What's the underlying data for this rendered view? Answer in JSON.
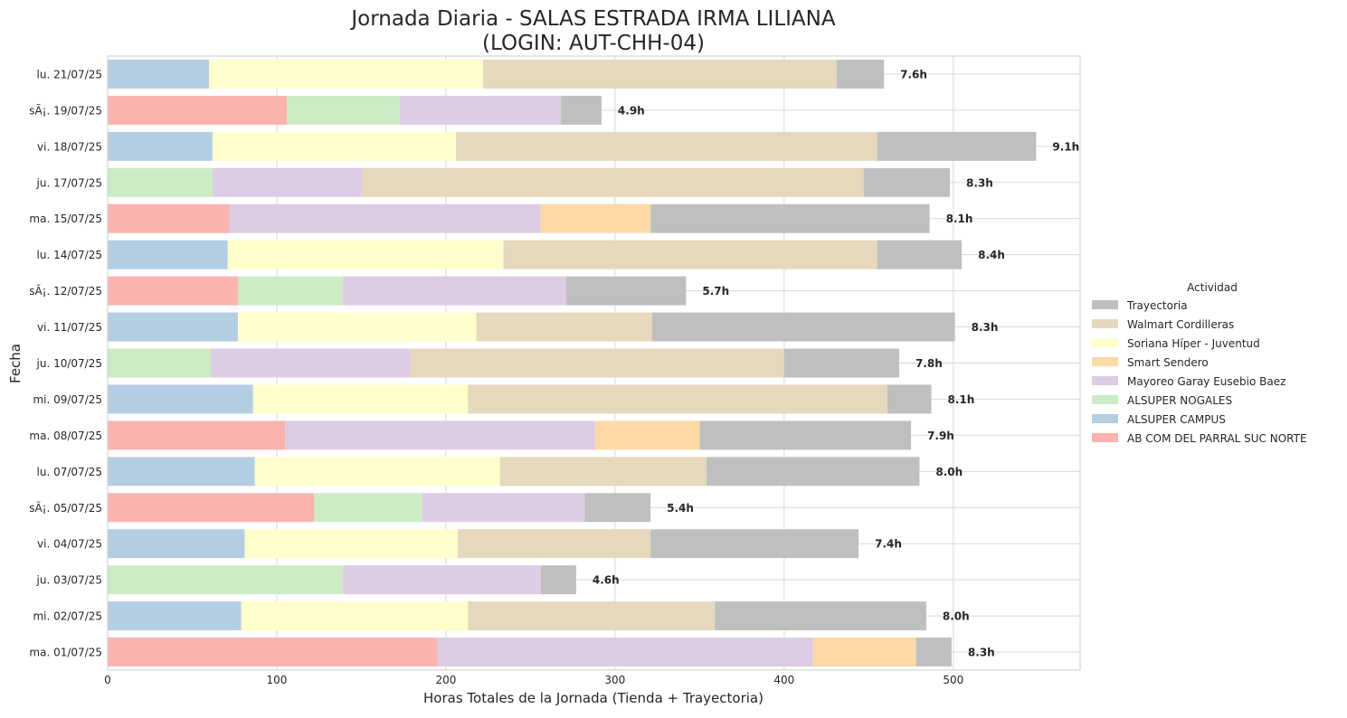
{
  "chart_data": {
    "type": "bar",
    "orientation": "horizontal",
    "stacked": true,
    "title_line1": "Jornada Diaria - SALAS ESTRADA IRMA LILIANA",
    "title_line2": "(LOGIN: AUT-CHH-04)",
    "xlabel": "Horas Totales de la Jornada (Tienda + Trayectoria)",
    "ylabel": "Fecha",
    "xlim": [
      0,
      575
    ],
    "xticks": [
      0,
      100,
      200,
      300,
      400,
      500
    ],
    "grid": true,
    "legend": {
      "title": "Actividad",
      "placement": "right",
      "entries": [
        "Trayectoria",
        "Walmart Cordilleras",
        "Soriana Híper - Juventud",
        "Smart Sendero",
        "Mayoreo Garay Eusebio Baez",
        "ALSUPER NOGALES",
        "ALSUPER CAMPUS",
        "AB COM DEL PARRAL SUC NORTE"
      ]
    },
    "colors": {
      "AB COM DEL PARRAL SUC NORTE": "#fab3ae",
      "ALSUPER CAMPUS": "#b3cde3",
      "ALSUPER NOGALES": "#ccebc5",
      "Mayoreo Garay Eusebio Baez": "#decbe4",
      "Smart Sendero": "#fed9a6",
      "Soriana Híper - Juventud": "#ffffcc",
      "Walmart Cordilleras": "#e5d8bd",
      "Trayectoria": "#bfbfbf"
    },
    "series_order": [
      "AB COM DEL PARRAL SUC NORTE",
      "ALSUPER CAMPUS",
      "ALSUPER NOGALES",
      "Mayoreo Garay Eusebio Baez",
      "Smart Sendero",
      "Soriana Híper - Juventud",
      "Walmart Cordilleras",
      "Trayectoria"
    ],
    "categories": [
      "lu. 21/07/25",
      "sÃ¡. 19/07/25",
      "vi. 18/07/25",
      "ju. 17/07/25",
      "ma. 15/07/25",
      "lu. 14/07/25",
      "sÃ¡. 12/07/25",
      "vi. 11/07/25",
      "ju. 10/07/25",
      "mi. 09/07/25",
      "ma. 08/07/25",
      "lu. 07/07/25",
      "sÃ¡. 05/07/25",
      "vi. 04/07/25",
      "ju. 03/07/25",
      "mi. 02/07/25",
      "ma. 01/07/25"
    ],
    "series": [
      {
        "name": "AB COM DEL PARRAL SUC NORTE",
        "values": [
          0,
          106,
          0,
          0,
          72,
          0,
          77,
          0,
          0,
          0,
          105,
          0,
          122,
          0,
          0,
          0,
          195
        ]
      },
      {
        "name": "ALSUPER CAMPUS",
        "values": [
          60,
          0,
          62,
          0,
          0,
          71,
          0,
          77,
          0,
          86,
          0,
          87,
          0,
          81,
          0,
          79,
          0
        ]
      },
      {
        "name": "ALSUPER NOGALES",
        "values": [
          0,
          67,
          0,
          62,
          0,
          0,
          62,
          0,
          61,
          0,
          0,
          0,
          64,
          0,
          139,
          0,
          0
        ]
      },
      {
        "name": "Mayoreo Garay Eusebio Baez",
        "values": [
          0,
          95,
          0,
          88,
          184,
          0,
          132,
          0,
          118,
          0,
          183,
          0,
          96,
          0,
          117,
          0,
          222
        ]
      },
      {
        "name": "Smart Sendero",
        "values": [
          0,
          0,
          0,
          0,
          65,
          0,
          0,
          0,
          0,
          0,
          62,
          0,
          0,
          0,
          0,
          0,
          61
        ]
      },
      {
        "name": "Soriana Híper - Juventud",
        "values": [
          162,
          0,
          144,
          0,
          0,
          163,
          0,
          141,
          0,
          127,
          0,
          145,
          0,
          126,
          0,
          134,
          0
        ]
      },
      {
        "name": "Walmart Cordilleras",
        "values": [
          209,
          0,
          249,
          297,
          0,
          221,
          0,
          104,
          221,
          248,
          0,
          122,
          0,
          114,
          0,
          146,
          0
        ]
      },
      {
        "name": "Trayectoria",
        "values": [
          28,
          24,
          94,
          51,
          165,
          50,
          71,
          179,
          68,
          26,
          125,
          126,
          39,
          123,
          21,
          125,
          21
        ]
      }
    ],
    "totals_labels": [
      "7.6h",
      "4.9h",
      "9.1h",
      "8.3h",
      "8.1h",
      "8.4h",
      "5.7h",
      "8.3h",
      "7.8h",
      "8.1h",
      "7.9h",
      "8.0h",
      "5.4h",
      "7.4h",
      "4.6h",
      "8.0h",
      "8.3h"
    ]
  }
}
